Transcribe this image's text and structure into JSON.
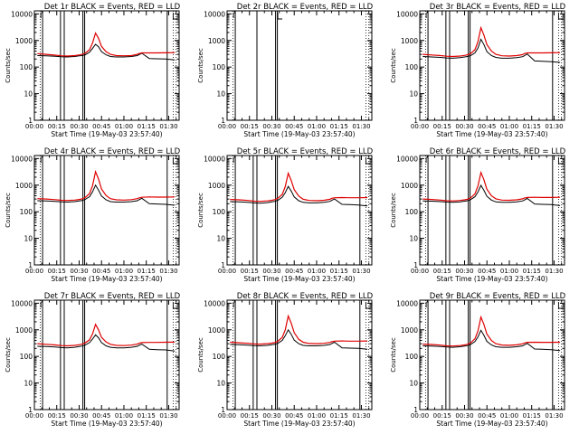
{
  "window": {
    "background": "#ffffff",
    "frame_color": "#000000"
  },
  "common": {
    "xlabel": "Start Time (19-May-03 23:57:40)",
    "ylabel": "Counts/sec",
    "xticks": [
      "00:00",
      "00:15",
      "00:30",
      "00:45",
      "01:00",
      "01:15",
      "01:30"
    ],
    "yticks": [
      "1",
      "10",
      "100",
      "1000",
      "10000"
    ],
    "y_scale": "log",
    "ylim": [
      1,
      13000
    ],
    "colors": {
      "events": "#000000",
      "lld": "#e00000"
    }
  },
  "chart_data": [
    {
      "type": "line",
      "title": "Det 1r BLACK = Events, RED = LLD",
      "x": [
        2,
        8,
        14,
        18,
        22,
        27,
        30,
        32,
        34,
        37,
        39,
        41,
        43,
        45,
        48,
        51,
        55,
        60,
        65,
        69,
        70,
        72,
        77,
        82,
        88,
        94
      ],
      "series": [
        {
          "name": "Events",
          "color": "#000000",
          "values": [
            270,
            265,
            255,
            245,
            240,
            250,
            265,
            270,
            290,
            360,
            500,
            720,
            580,
            380,
            290,
            250,
            240,
            240,
            250,
            270,
            290,
            330,
            210,
            205,
            200,
            185
          ]
        },
        {
          "name": "LLD",
          "color": "#e00000",
          "values": [
            320,
            300,
            280,
            265,
            260,
            270,
            285,
            300,
            330,
            450,
            800,
            1900,
            1200,
            600,
            380,
            300,
            270,
            265,
            270,
            300,
            320,
            340,
            340,
            340,
            345,
            350
          ]
        }
      ],
      "vlines_solid": [
        5.5,
        17.5,
        20,
        32.5,
        33.7,
        89
      ],
      "vlines_dotted": [
        4,
        93,
        95
      ],
      "markers": [
        93
      ]
    },
    {
      "type": "line",
      "title": "Det 2r BLACK = Events, RED = LLD",
      "x": [],
      "series": [
        {
          "name": "Events",
          "color": "#000000",
          "values": []
        },
        {
          "name": "LLD",
          "color": "#e00000",
          "values": []
        }
      ],
      "vlines_solid": [
        5.5,
        20,
        32.5,
        33.7
      ],
      "vlines_dotted": [
        4,
        93,
        95
      ],
      "markers": [
        34
      ]
    },
    {
      "type": "line",
      "title": "Det 3r BLACK = Events, RED = LLD",
      "x": [
        2,
        8,
        14,
        18,
        22,
        27,
        30,
        32,
        34,
        37,
        39,
        41,
        43,
        45,
        48,
        51,
        55,
        60,
        65,
        69,
        70,
        72,
        77,
        82,
        88,
        94
      ],
      "series": [
        {
          "name": "Events",
          "color": "#000000",
          "values": [
            250,
            240,
            230,
            220,
            215,
            225,
            240,
            250,
            270,
            340,
            520,
            1100,
            700,
            380,
            270,
            230,
            215,
            215,
            225,
            245,
            265,
            310,
            170,
            165,
            160,
            150
          ]
        },
        {
          "name": "LLD",
          "color": "#e00000",
          "values": [
            300,
            285,
            270,
            255,
            250,
            260,
            275,
            290,
            320,
            450,
            900,
            3000,
            1600,
            700,
            400,
            300,
            265,
            260,
            270,
            295,
            320,
            340,
            340,
            340,
            345,
            350
          ]
        }
      ],
      "vlines_solid": [
        5.5,
        17.5,
        20,
        32.5,
        33.7,
        89
      ],
      "vlines_dotted": [
        4,
        93,
        95
      ],
      "markers": [
        93
      ]
    },
    {
      "type": "line",
      "title": "Det 4r BLACK = Events, RED = LLD",
      "x": [
        2,
        8,
        14,
        18,
        22,
        27,
        30,
        32,
        34,
        37,
        39,
        41,
        43,
        45,
        48,
        51,
        55,
        60,
        65,
        69,
        70,
        72,
        77,
        82,
        88,
        94
      ],
      "series": [
        {
          "name": "Events",
          "color": "#000000",
          "values": [
            260,
            255,
            245,
            235,
            230,
            240,
            255,
            265,
            290,
            370,
            560,
            1000,
            650,
            390,
            280,
            240,
            230,
            230,
            240,
            260,
            280,
            320,
            200,
            195,
            190,
            175
          ]
        },
        {
          "name": "LLD",
          "color": "#e00000",
          "values": [
            310,
            300,
            285,
            270,
            265,
            275,
            290,
            305,
            340,
            480,
            950,
            3200,
            1700,
            720,
            410,
            310,
            280,
            275,
            285,
            310,
            330,
            350,
            360,
            355,
            355,
            360
          ]
        }
      ],
      "vlines_solid": [
        5.5,
        17.5,
        20,
        32.5,
        33.7,
        89
      ],
      "vlines_dotted": [
        4,
        93,
        95
      ],
      "markers": [
        93
      ]
    },
    {
      "type": "line",
      "title": "Det 5r BLACK = Events, RED = LLD",
      "x": [
        2,
        8,
        14,
        18,
        22,
        27,
        30,
        32,
        34,
        37,
        39,
        41,
        43,
        45,
        48,
        51,
        55,
        60,
        65,
        69,
        70,
        72,
        77,
        82,
        88,
        94
      ],
      "series": [
        {
          "name": "Events",
          "color": "#000000",
          "values": [
            240,
            235,
            225,
            215,
            210,
            220,
            235,
            245,
            270,
            350,
            520,
            900,
            600,
            360,
            260,
            225,
            215,
            215,
            225,
            245,
            265,
            300,
            190,
            185,
            180,
            165
          ]
        },
        {
          "name": "LLD",
          "color": "#e00000",
          "values": [
            290,
            280,
            265,
            250,
            245,
            255,
            270,
            285,
            320,
            450,
            880,
            2800,
            1500,
            680,
            390,
            295,
            265,
            260,
            270,
            295,
            315,
            335,
            340,
            335,
            335,
            340
          ]
        }
      ],
      "vlines_solid": [
        5.5,
        17.5,
        20,
        32.5,
        33.7,
        89
      ],
      "vlines_dotted": [
        4,
        93,
        95
      ],
      "markers": [
        93
      ]
    },
    {
      "type": "line",
      "title": "Det 6r BLACK = Events, RED = LLD",
      "x": [
        2,
        8,
        14,
        18,
        22,
        27,
        30,
        32,
        34,
        37,
        39,
        41,
        43,
        45,
        48,
        51,
        55,
        60,
        65,
        69,
        70,
        72,
        77,
        82,
        88,
        94
      ],
      "series": [
        {
          "name": "Events",
          "color": "#000000",
          "values": [
            255,
            250,
            240,
            230,
            225,
            235,
            250,
            260,
            285,
            365,
            550,
            980,
            640,
            380,
            275,
            235,
            225,
            225,
            235,
            255,
            275,
            315,
            195,
            190,
            185,
            170
          ]
        },
        {
          "name": "LLD",
          "color": "#e00000",
          "values": [
            300,
            290,
            275,
            260,
            255,
            265,
            280,
            295,
            330,
            470,
            930,
            3000,
            1600,
            700,
            400,
            305,
            275,
            270,
            280,
            305,
            325,
            345,
            350,
            345,
            345,
            350
          ]
        }
      ],
      "vlines_solid": [
        5.5,
        17.5,
        20,
        32.5,
        33.7,
        89
      ],
      "vlines_dotted": [
        4,
        93,
        95
      ],
      "markers": [
        93
      ]
    },
    {
      "type": "line",
      "title": "Det 7r BLACK = Events, RED = LLD",
      "x": [
        2,
        8,
        14,
        18,
        22,
        27,
        30,
        32,
        34,
        37,
        39,
        41,
        43,
        45,
        48,
        51,
        55,
        60,
        65,
        69,
        70,
        72,
        77,
        82,
        88,
        94
      ],
      "series": [
        {
          "name": "Events",
          "color": "#000000",
          "values": [
            240,
            235,
            225,
            215,
            210,
            220,
            235,
            245,
            265,
            330,
            450,
            650,
            500,
            330,
            250,
            220,
            210,
            210,
            220,
            240,
            260,
            290,
            185,
            180,
            175,
            160
          ]
        },
        {
          "name": "LLD",
          "color": "#e00000",
          "values": [
            300,
            285,
            270,
            255,
            250,
            260,
            275,
            290,
            320,
            420,
            700,
            1600,
            1000,
            520,
            350,
            285,
            260,
            255,
            265,
            290,
            310,
            330,
            335,
            335,
            340,
            345
          ]
        }
      ],
      "vlines_solid": [
        5.5,
        17.5,
        20,
        32.5,
        33.7,
        89
      ],
      "vlines_dotted": [
        4,
        93,
        95
      ],
      "markers": [
        93
      ]
    },
    {
      "type": "line",
      "title": "Det 8r BLACK = Events, RED = LLD",
      "x": [
        2,
        8,
        14,
        18,
        22,
        27,
        30,
        32,
        34,
        37,
        39,
        41,
        43,
        45,
        48,
        51,
        55,
        60,
        65,
        69,
        70,
        72,
        77,
        82,
        88,
        94
      ],
      "series": [
        {
          "name": "Events",
          "color": "#000000",
          "values": [
            280,
            275,
            265,
            255,
            250,
            260,
            275,
            285,
            310,
            400,
            600,
            1000,
            680,
            410,
            300,
            260,
            250,
            250,
            260,
            280,
            300,
            340,
            210,
            205,
            200,
            185
          ]
        },
        {
          "name": "LLD",
          "color": "#e00000",
          "values": [
            340,
            325,
            310,
            295,
            290,
            300,
            315,
            330,
            370,
            520,
            1000,
            3300,
            1800,
            780,
            440,
            340,
            305,
            300,
            310,
            335,
            355,
            375,
            380,
            375,
            375,
            380
          ]
        }
      ],
      "vlines_solid": [
        5.5,
        17.5,
        20,
        32.5,
        33.7,
        89
      ],
      "vlines_dotted": [
        4,
        93,
        95
      ],
      "markers": [
        93
      ]
    },
    {
      "type": "line",
      "title": "Det 9r BLACK = Events, RED = LLD",
      "x": [
        2,
        8,
        14,
        18,
        22,
        27,
        30,
        32,
        34,
        37,
        39,
        41,
        43,
        45,
        48,
        51,
        55,
        60,
        65,
        69,
        70,
        72,
        77,
        82,
        88,
        94
      ],
      "series": [
        {
          "name": "Events",
          "color": "#000000",
          "values": [
            250,
            245,
            235,
            225,
            220,
            230,
            245,
            255,
            280,
            360,
            540,
            960,
            620,
            370,
            270,
            230,
            220,
            220,
            230,
            250,
            270,
            310,
            190,
            185,
            180,
            165
          ]
        },
        {
          "name": "LLD",
          "color": "#e00000",
          "values": [
            290,
            280,
            265,
            250,
            245,
            255,
            270,
            285,
            320,
            460,
            900,
            3000,
            1600,
            690,
            395,
            300,
            268,
            262,
            272,
            298,
            318,
            338,
            342,
            338,
            338,
            342
          ]
        }
      ],
      "vlines_solid": [
        5.5,
        17.5,
        20,
        32.5,
        33.7,
        89
      ],
      "vlines_dotted": [
        4,
        93,
        95
      ],
      "markers": [
        93
      ]
    }
  ]
}
